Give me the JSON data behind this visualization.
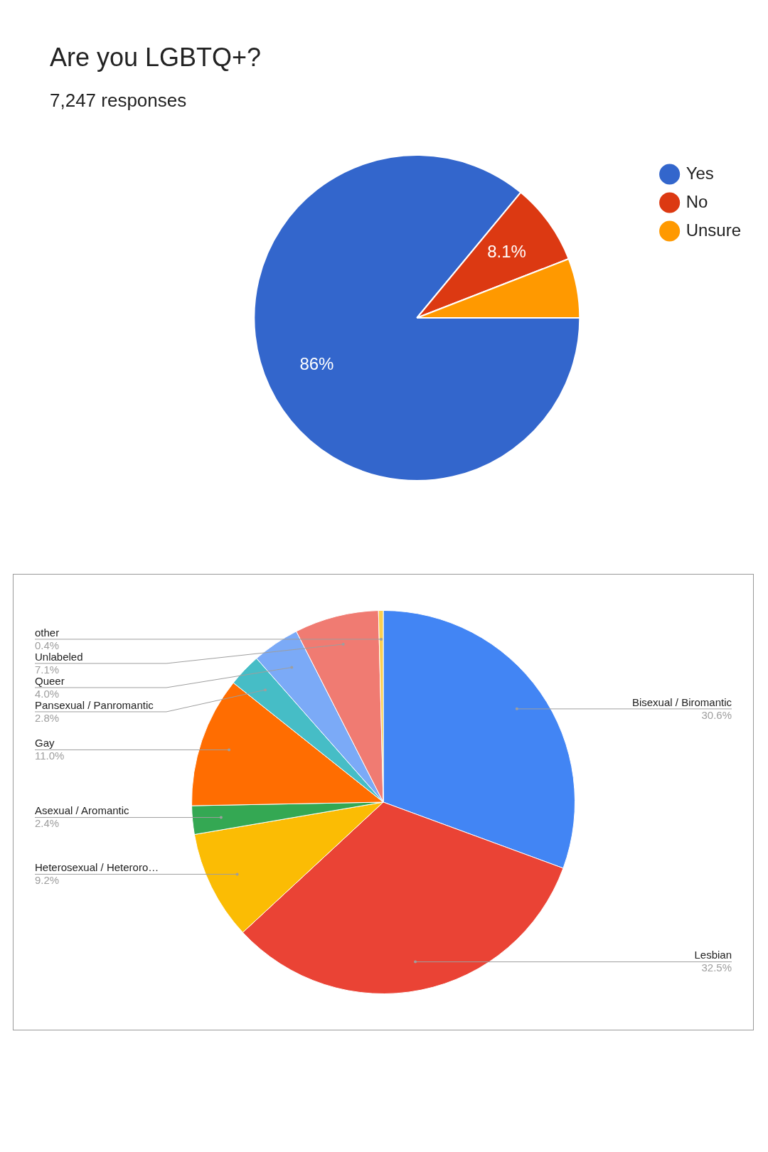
{
  "chart_data": [
    {
      "type": "pie",
      "title": "Are you LGBTQ+?",
      "subtitle": "7,247 responses",
      "categories": [
        "Yes",
        "No",
        "Unsure"
      ],
      "values": [
        86,
        8.1,
        5.9
      ],
      "colors": [
        "#3366cc",
        "#dc3912",
        "#ff9900"
      ],
      "value_labels": [
        "86%",
        "8.1%",
        null
      ],
      "legend": "top right"
    },
    {
      "type": "pie",
      "categories": [
        "Bisexual / Biromantic",
        "Lesbian",
        "Heterosexual / Heteroro…",
        "Asexual / Aromantic",
        "Gay",
        "Pansexual / Panromantic",
        "Queer",
        "Unlabeled",
        "other"
      ],
      "values": [
        30.6,
        32.5,
        9.2,
        2.4,
        11.0,
        2.8,
        4.0,
        7.1,
        0.4
      ],
      "colors": [
        "#4285f4",
        "#ea4335",
        "#fbbc04",
        "#34a853",
        "#ff6d01",
        "#46bdc6",
        "#7baaf7",
        "#f07b72",
        "#fcd04f"
      ],
      "value_labels": [
        "30.6%",
        "32.5%",
        "9.2%",
        "2.4%",
        "11.0%",
        "2.8%",
        "4.0%",
        "7.1%",
        "0.4%"
      ]
    }
  ]
}
